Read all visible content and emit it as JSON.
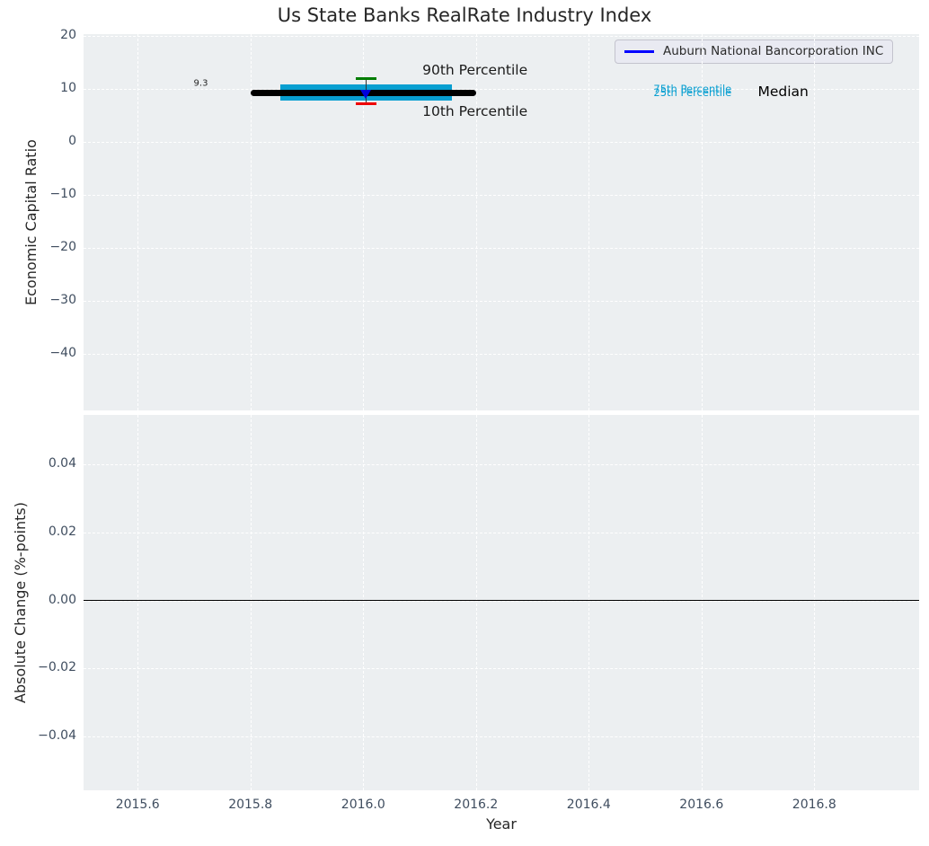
{
  "figure_title": "Us State Banks RealRate Industry Index",
  "styles": {
    "axes_bg": "#eceff1",
    "grid_color": "#ffffff",
    "tick_color": "#3f4d5f",
    "text_color": "#262626"
  },
  "chart_data": [
    {
      "type": "percentile_band",
      "title": "Us State Banks RealRate Industry Index",
      "ylabel": "Economic Capital Ratio",
      "xlim": [
        2015.504,
        2016.986
      ],
      "ylim": [
        -50.6,
        20.35
      ],
      "xticks": [
        2015.6,
        2015.8,
        2016.0,
        2016.2,
        2016.4,
        2016.6,
        2016.8
      ],
      "xtick_labels_shown": false,
      "yticks": [
        20,
        10,
        0,
        -10,
        -20,
        -30,
        -40
      ],
      "ytick_labels": [
        "20",
        "10",
        "0",
        "−10",
        "−20",
        "−30",
        "−40"
      ],
      "grid": true,
      "legend": {
        "position": "upper right",
        "entries": [
          {
            "label": "Auburn National Bancorporation INC",
            "color": "#0000ff"
          }
        ]
      },
      "series": {
        "year": 2016.005,
        "median": 9.3,
        "median_span": [
          2015.8,
          2016.2
        ],
        "p75": 10.9,
        "p25": 7.8,
        "iqr_span": [
          2015.853,
          2016.158
        ],
        "p90": 11.9,
        "p10": 7.2,
        "whisker_halfwidth": 0.019,
        "company_value": 9.0,
        "colors": {
          "median": "#000000",
          "iqr_band": "#089fd1",
          "p90_cap": "#007d00",
          "p10_cap": "#ee0000",
          "whisker": "#333333",
          "company_marker": "#0000dd"
        }
      },
      "annotations": [
        {
          "text": "9.3",
          "x": 2015.712,
          "y": 11.1,
          "size": 10,
          "color": "#262626",
          "align": "center"
        },
        {
          "text": "90th Percentile",
          "x": 2016.105,
          "y": 13.6,
          "size": 15.5,
          "color": "#1a1a1a",
          "align": "left"
        },
        {
          "text": "10th Percentile",
          "x": 2016.105,
          "y": 5.8,
          "size": 15.5,
          "color": "#1a1a1a",
          "align": "left"
        },
        {
          "text": "75th Percentile",
          "x": 2016.515,
          "y": 9.95,
          "size": 11.5,
          "color": "#089fd1",
          "align": "left"
        },
        {
          "text": "25th Percentile",
          "x": 2016.515,
          "y": 9.35,
          "size": 11.5,
          "color": "#089fd1",
          "align": "left"
        },
        {
          "text": "Median",
          "x": 2016.7,
          "y": 9.55,
          "size": 15.5,
          "color": "#000000",
          "align": "left"
        }
      ]
    },
    {
      "type": "line",
      "ylabel": "Absolute Change (%-points)",
      "xlabel": "Year",
      "xlim": [
        2015.504,
        2016.986
      ],
      "ylim": [
        -0.0558,
        0.0545
      ],
      "xticks": [
        2015.6,
        2015.8,
        2016.0,
        2016.2,
        2016.4,
        2016.6,
        2016.8
      ],
      "xtick_labels": [
        "2015.6",
        "2015.8",
        "2016.0",
        "2016.2",
        "2016.4",
        "2016.6",
        "2016.8"
      ],
      "yticks": [
        0.04,
        0.02,
        0.0,
        -0.02,
        -0.04
      ],
      "ytick_labels": [
        "0.04",
        "0.02",
        "0.00",
        "−0.02",
        "−0.04"
      ],
      "zero_line": {
        "value": 0.0,
        "color": "#000000"
      },
      "grid": true
    }
  ]
}
